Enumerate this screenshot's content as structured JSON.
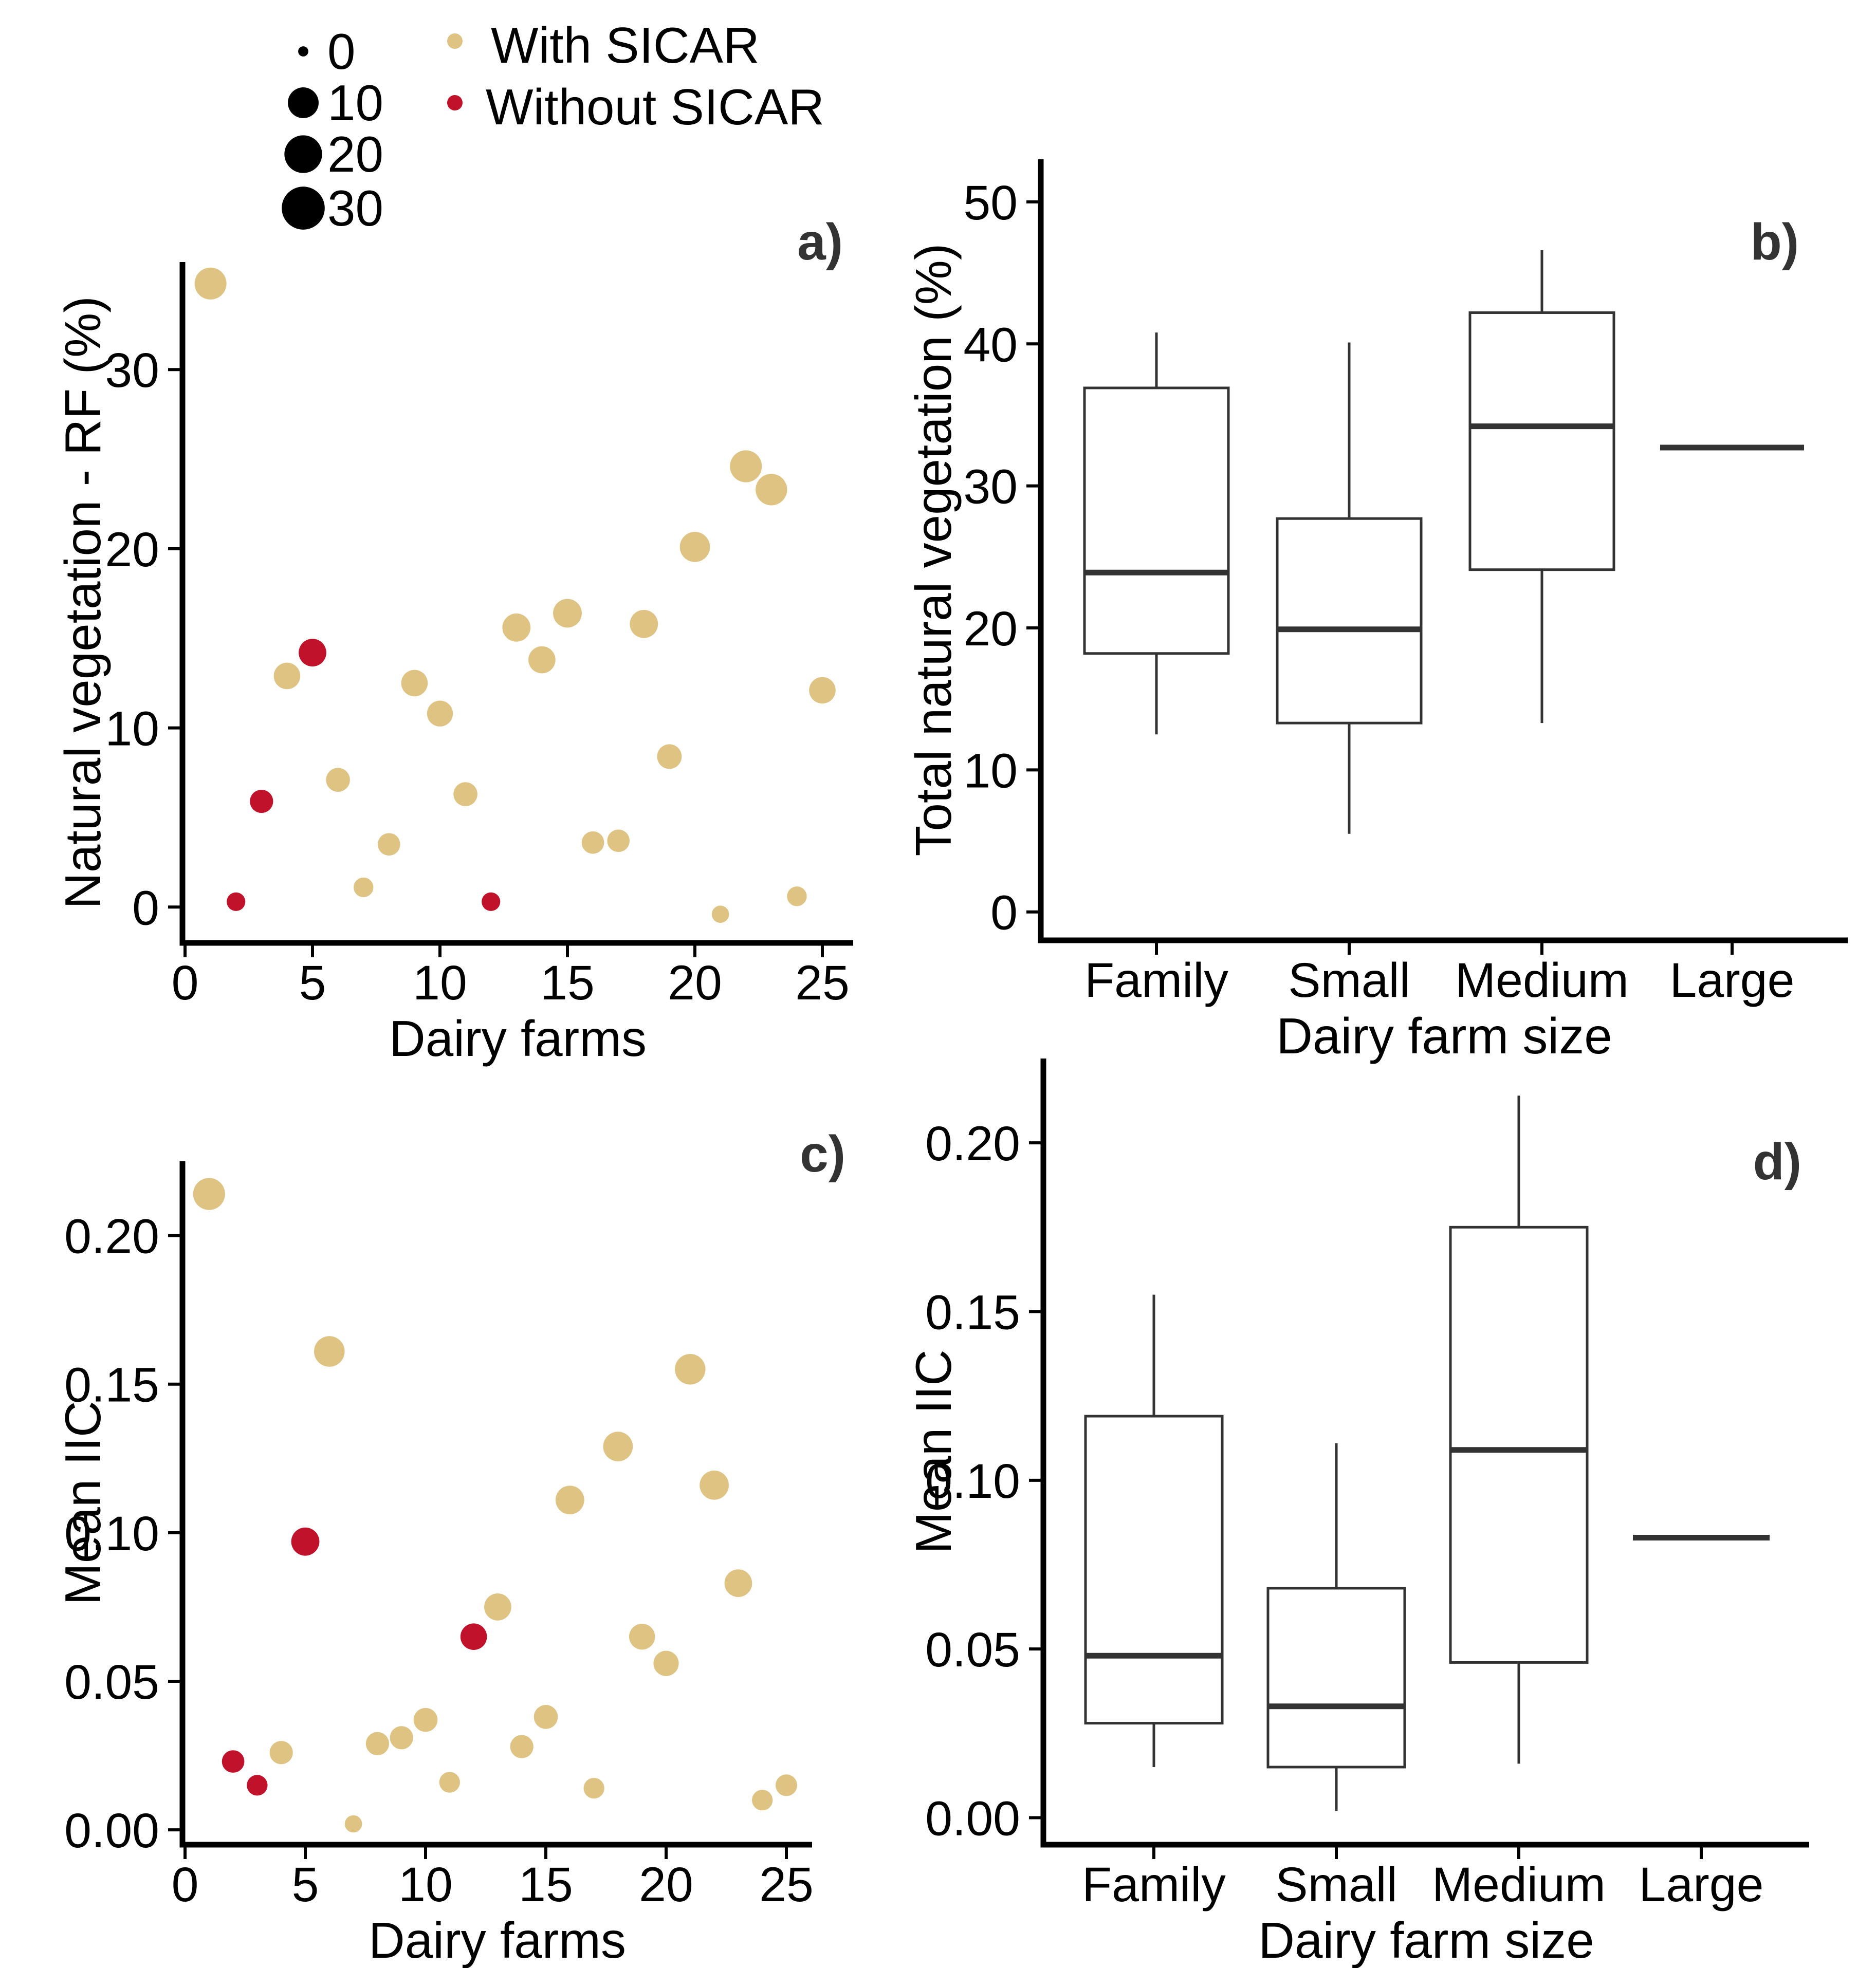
{
  "colors": {
    "with_sicar": "#DFC383",
    "without_sicar": "#C0122A",
    "axis": "#000000",
    "box_stroke": "#333333"
  },
  "legend": {
    "size_title": "",
    "size_labels": [
      "0",
      "10",
      "20",
      "30"
    ],
    "size_values": [
      0,
      10,
      20,
      30
    ],
    "groups": [
      {
        "label": "With SICAR",
        "color": "#DFC383"
      },
      {
        "label": "Without SICAR",
        "color": "#C0122A"
      }
    ]
  },
  "chart_data": [
    {
      "panel": "a)",
      "type": "scatter",
      "xlabel": "Dairy farms",
      "ylabel": "Natural vegetation - RF (%)",
      "xlim": [
        0,
        26
      ],
      "ylim": [
        -2,
        36
      ],
      "xticks": [
        "0",
        "5",
        "10",
        "15",
        "20",
        "25"
      ],
      "yticks": [
        "0",
        "10",
        "20",
        "30"
      ],
      "xtick_values": [
        0,
        5,
        10,
        15,
        20,
        25
      ],
      "ytick_values": [
        0,
        10,
        20,
        30
      ],
      "points": [
        {
          "x": 1,
          "y": 34.8,
          "size": 24,
          "group": "With SICAR"
        },
        {
          "x": 2,
          "y": 0.3,
          "size": 3,
          "group": "Without SICAR"
        },
        {
          "x": 3,
          "y": 5.9,
          "size": 8,
          "group": "Without SICAR"
        },
        {
          "x": 4,
          "y": 12.9,
          "size": 13,
          "group": "With SICAR"
        },
        {
          "x": 5,
          "y": 14.2,
          "size": 15,
          "group": "Without SICAR"
        },
        {
          "x": 6,
          "y": 7.1,
          "size": 9,
          "group": "With SICAR"
        },
        {
          "x": 7,
          "y": 1.1,
          "size": 4,
          "group": "With SICAR"
        },
        {
          "x": 8,
          "y": 3.5,
          "size": 7,
          "group": "With SICAR"
        },
        {
          "x": 9,
          "y": 12.5,
          "size": 13,
          "group": "With SICAR"
        },
        {
          "x": 10,
          "y": 10.8,
          "size": 12,
          "group": "With SICAR"
        },
        {
          "x": 11,
          "y": 6.3,
          "size": 9,
          "group": "With SICAR"
        },
        {
          "x": 12,
          "y": 0.3,
          "size": 3,
          "group": "Without SICAR"
        },
        {
          "x": 13,
          "y": 15.6,
          "size": 16,
          "group": "With SICAR"
        },
        {
          "x": 14,
          "y": 13.8,
          "size": 14,
          "group": "With SICAR"
        },
        {
          "x": 15,
          "y": 16.4,
          "size": 17,
          "group": "With SICAR"
        },
        {
          "x": 16,
          "y": 3.6,
          "size": 7,
          "group": "With SICAR"
        },
        {
          "x": 17,
          "y": 3.7,
          "size": 7,
          "group": "With SICAR"
        },
        {
          "x": 18,
          "y": 15.8,
          "size": 16,
          "group": "With SICAR"
        },
        {
          "x": 19,
          "y": 8.4,
          "size": 10,
          "group": "With SICAR"
        },
        {
          "x": 20,
          "y": 20.1,
          "size": 20,
          "group": "With SICAR"
        },
        {
          "x": 21,
          "y": -0.4,
          "size": 2,
          "group": "With SICAR"
        },
        {
          "x": 22,
          "y": 24.6,
          "size": 24,
          "group": "With SICAR"
        },
        {
          "x": 23,
          "y": 23.3,
          "size": 23,
          "group": "With SICAR"
        },
        {
          "x": 24,
          "y": 0.6,
          "size": 4,
          "group": "With SICAR"
        },
        {
          "x": 25,
          "y": 12.1,
          "size": 13,
          "group": "With SICAR"
        }
      ]
    },
    {
      "panel": "b)",
      "type": "box",
      "xlabel": "Dairy farm size",
      "ylabel": "Total natural vegetation (%)",
      "ylim": [
        -2,
        53
      ],
      "yticks": [
        "0",
        "10",
        "20",
        "30",
        "40",
        "50"
      ],
      "ytick_values": [
        0,
        10,
        20,
        30,
        40,
        50
      ],
      "categories": [
        "Family",
        "Small",
        "Medium",
        "Large"
      ],
      "boxes": [
        {
          "category": "Family",
          "whisker_low": 12.5,
          "q1": 18.2,
          "median": 23.9,
          "q3": 36.9,
          "whisker_high": 40.8
        },
        {
          "category": "Small",
          "whisker_low": 5.5,
          "q1": 13.3,
          "median": 19.9,
          "q3": 27.7,
          "whisker_high": 40.1
        },
        {
          "category": "Medium",
          "whisker_low": 13.3,
          "q1": 24.1,
          "median": 34.2,
          "q3": 42.2,
          "whisker_high": 46.6
        },
        {
          "category": "Large",
          "whisker_low": 32.7,
          "q1": 32.7,
          "median": 32.7,
          "q3": 32.7,
          "whisker_high": 32.7
        }
      ]
    },
    {
      "panel": "c)",
      "type": "scatter",
      "xlabel": "Dairy farms",
      "ylabel": "Mean IIC",
      "xlim": [
        0,
        26
      ],
      "ylim": [
        -0.005,
        0.225
      ],
      "xticks": [
        "0",
        "5",
        "10",
        "15",
        "20",
        "25"
      ],
      "yticks": [
        "0.00",
        "0.05",
        "0.10",
        "0.15",
        "0.20"
      ],
      "xtick_values": [
        0,
        5,
        10,
        15,
        20,
        25
      ],
      "ytick_values": [
        0,
        0.05,
        0.1,
        0.15,
        0.2
      ],
      "points": [
        {
          "x": 1,
          "y": 0.214,
          "size": 24,
          "group": "With SICAR"
        },
        {
          "x": 2,
          "y": 0.023,
          "size": 7,
          "group": "Without SICAR"
        },
        {
          "x": 3,
          "y": 0.015,
          "size": 5,
          "group": "Without SICAR"
        },
        {
          "x": 4,
          "y": 0.026,
          "size": 8,
          "group": "With SICAR"
        },
        {
          "x": 5,
          "y": 0.097,
          "size": 16,
          "group": "Without SICAR"
        },
        {
          "x": 6,
          "y": 0.161,
          "size": 21,
          "group": "With SICAR"
        },
        {
          "x": 7,
          "y": 0.002,
          "size": 2,
          "group": "With SICAR"
        },
        {
          "x": 8,
          "y": 0.029,
          "size": 8,
          "group": "With SICAR"
        },
        {
          "x": 9,
          "y": 0.031,
          "size": 8,
          "group": "With SICAR"
        },
        {
          "x": 10,
          "y": 0.037,
          "size": 9,
          "group": "With SICAR"
        },
        {
          "x": 11,
          "y": 0.016,
          "size": 5,
          "group": "With SICAR"
        },
        {
          "x": 12,
          "y": 0.065,
          "size": 13,
          "group": "Without SICAR"
        },
        {
          "x": 13,
          "y": 0.075,
          "size": 14,
          "group": "With SICAR"
        },
        {
          "x": 14,
          "y": 0.028,
          "size": 8,
          "group": "With SICAR"
        },
        {
          "x": 15,
          "y": 0.038,
          "size": 9,
          "group": "With SICAR"
        },
        {
          "x": 16,
          "y": 0.111,
          "size": 17,
          "group": "With SICAR"
        },
        {
          "x": 17,
          "y": 0.014,
          "size": 5,
          "group": "With SICAR"
        },
        {
          "x": 18,
          "y": 0.129,
          "size": 19,
          "group": "With SICAR"
        },
        {
          "x": 19,
          "y": 0.065,
          "size": 12,
          "group": "With SICAR"
        },
        {
          "x": 20,
          "y": 0.056,
          "size": 11,
          "group": "With SICAR"
        },
        {
          "x": 21,
          "y": 0.155,
          "size": 21,
          "group": "With SICAR"
        },
        {
          "x": 22,
          "y": 0.116,
          "size": 18,
          "group": "With SICAR"
        },
        {
          "x": 23,
          "y": 0.083,
          "size": 15,
          "group": "With SICAR"
        },
        {
          "x": 24,
          "y": 0.01,
          "size": 5,
          "group": "With SICAR"
        },
        {
          "x": 25,
          "y": 0.015,
          "size": 6,
          "group": "With SICAR"
        }
      ]
    },
    {
      "panel": "d)",
      "type": "box",
      "xlabel": "Dairy farm size",
      "ylabel": "Mean IIC",
      "ylim": [
        -0.008,
        0.225
      ],
      "yticks": [
        "0.00",
        "0.05",
        "0.10",
        "0.15",
        "0.20"
      ],
      "ytick_values": [
        0,
        0.05,
        0.1,
        0.15,
        0.2
      ],
      "categories": [
        "Family",
        "Small",
        "Medium",
        "Large"
      ],
      "boxes": [
        {
          "category": "Family",
          "whisker_low": 0.015,
          "q1": 0.028,
          "median": 0.048,
          "q3": 0.119,
          "whisker_high": 0.155
        },
        {
          "category": "Small",
          "whisker_low": 0.002,
          "q1": 0.015,
          "median": 0.033,
          "q3": 0.068,
          "whisker_high": 0.111
        },
        {
          "category": "Medium",
          "whisker_low": 0.016,
          "q1": 0.046,
          "median": 0.109,
          "q3": 0.175,
          "whisker_high": 0.214
        },
        {
          "category": "Large",
          "whisker_low": 0.083,
          "q1": 0.083,
          "median": 0.083,
          "q3": 0.083,
          "whisker_high": 0.083
        }
      ]
    }
  ]
}
